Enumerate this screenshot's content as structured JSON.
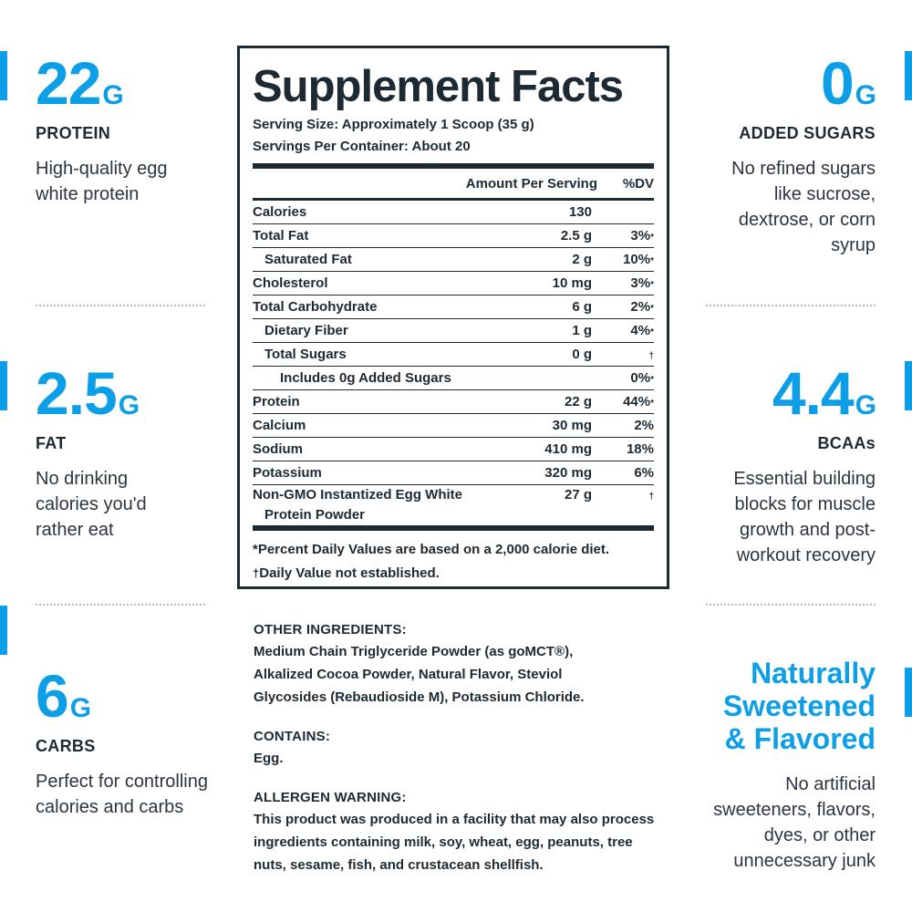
{
  "colors": {
    "accent": "#0d9ee8",
    "text": "#1e2a33"
  },
  "left_stats": [
    {
      "number": "22",
      "unit": "G",
      "label": "PROTEIN",
      "desc": "High-quality egg white protein"
    },
    {
      "number": "2.5",
      "unit": "G",
      "label": "FAT",
      "desc": "No drinking calories you'd rather eat"
    },
    {
      "number": "6",
      "unit": "G",
      "label": "CARBS",
      "desc": "Perfect for controlling calories and carbs"
    }
  ],
  "right_stats": [
    {
      "number": "0",
      "unit": "G",
      "label": "ADDED SUGARS",
      "desc": "No refined sugars like sucrose, dextrose, or corn syrup"
    },
    {
      "number": "4.4",
      "unit": "G",
      "label": "BCAAs",
      "desc": "Essential building blocks for muscle growth and post-workout recovery"
    }
  ],
  "right_headline": {
    "line1": "Naturally",
    "line2": "Sweetened",
    "line3": "& Flavored",
    "desc": "No artificial sweeteners, flavors, dyes, or other unnecessary junk"
  },
  "facts": {
    "title": "Supplement Facts",
    "serving_size": "Serving Size: Approximately 1 Scoop (35 g)",
    "servings_per_container": "Servings Per Container: About 20",
    "header_amount": "Amount Per Serving",
    "header_dv": "%DV",
    "rows": [
      {
        "name": "Calories",
        "amount": "130",
        "dv": "",
        "mark": ""
      },
      {
        "name": "Total Fat",
        "amount": "2.5 g",
        "dv": "3%",
        "mark": "*"
      },
      {
        "name": "Saturated Fat",
        "amount": "2 g",
        "dv": "10%",
        "mark": "*"
      },
      {
        "name": "Cholesterol",
        "amount": "10 mg",
        "dv": "3%",
        "mark": "*"
      },
      {
        "name": "Total Carbohydrate",
        "amount": "6 g",
        "dv": "2%",
        "mark": "*"
      },
      {
        "name": "Dietary Fiber",
        "amount": "1 g",
        "dv": "4%",
        "mark": "*"
      },
      {
        "name": "Total Sugars",
        "amount": "0 g",
        "dv": "",
        "mark": "†"
      },
      {
        "name": "Includes 0g Added Sugars",
        "amount": "",
        "dv": "0%",
        "mark": "*"
      },
      {
        "name": "Protein",
        "amount": "22 g",
        "dv": "44%",
        "mark": "*"
      },
      {
        "name": "Calcium",
        "amount": "30 mg",
        "dv": "2%",
        "mark": ""
      },
      {
        "name": "Sodium",
        "amount": "410 mg",
        "dv": "18%",
        "mark": ""
      },
      {
        "name": "Potassium",
        "amount": "320 mg",
        "dv": "6%",
        "mark": ""
      }
    ],
    "last_row": {
      "name_line1": "Non-GMO Instantized Egg White",
      "name_line2": "Protein Powder",
      "amount": "27 g",
      "mark": "†"
    },
    "footnote1": "*Percent Daily Values are based on a 2,000 calorie diet.",
    "footnote2_mark": "†",
    "footnote2": "Daily Value not established."
  },
  "ingredients": {
    "other_heading": "OTHER INGREDIENTS:",
    "other_text": "Medium Chain Triglyceride Powder (as goMCT®), Alkalized Cocoa Powder, Natural Flavor, Steviol Glycosides (Rebaudioside M), Potassium Chloride.",
    "contains_heading": "CONTAINS:",
    "contains_text": "Egg.",
    "allergen_heading": "ALLERGEN WARNING:",
    "allergen_text": "This product was produced in a facility that may also process ingredients containing milk, soy, wheat, egg, peanuts, tree nuts, sesame, fish, and crustacean shellfish."
  }
}
